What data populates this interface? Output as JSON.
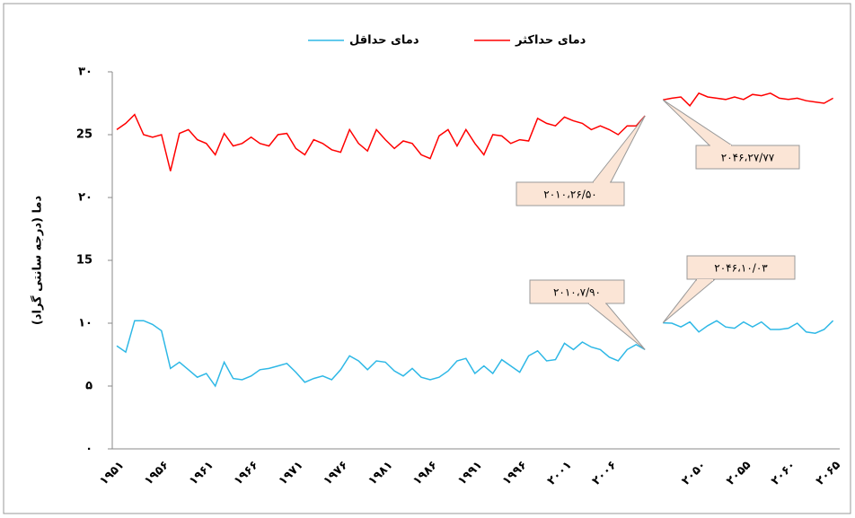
{
  "chart_data": {
    "type": "line",
    "y_label": "دما (درجه سانتی گراد)",
    "categories": [
      "۱۹۵۱",
      null,
      null,
      null,
      null,
      "۱۹۵۶",
      null,
      null,
      null,
      null,
      "۱۹۶۱",
      null,
      null,
      null,
      null,
      "۱۹۶۶",
      null,
      null,
      null,
      null,
      "۱۹۷۱",
      null,
      null,
      null,
      null,
      "۱۹۷۶",
      null,
      null,
      null,
      null,
      "۱۹۸۱",
      null,
      null,
      null,
      null,
      "۱۹۸۶",
      null,
      null,
      null,
      null,
      "۱۹۹۱",
      null,
      null,
      null,
      null,
      "۱۹۹۶",
      null,
      null,
      null,
      null,
      "۲۰۰۱",
      null,
      null,
      null,
      null,
      "۲۰۰۶",
      null,
      null,
      null,
      null,
      null,
      null,
      null,
      null,
      null,
      "۲۰۵۰",
      null,
      null,
      null,
      null,
      "۲۰۵۵",
      null,
      null,
      null,
      null,
      "۲۰۶۰",
      null,
      null,
      null,
      null,
      "۲۰۶۵"
    ],
    "series": [
      {
        "name": "دمای حداکثر",
        "color": "#ff0000",
        "values": [
          25.4,
          25.9,
          26.6,
          25.0,
          24.8,
          25.0,
          22.1,
          25.1,
          25.4,
          24.6,
          24.3,
          23.4,
          25.1,
          24.1,
          24.3,
          24.8,
          24.3,
          24.1,
          25.0,
          25.1,
          23.9,
          23.4,
          24.6,
          24.3,
          23.8,
          23.6,
          25.4,
          24.3,
          23.7,
          25.4,
          24.6,
          23.9,
          24.5,
          24.3,
          23.4,
          23.1,
          24.9,
          25.4,
          24.1,
          25.4,
          24.3,
          23.4,
          25.0,
          24.9,
          24.3,
          24.6,
          24.5,
          26.3,
          25.9,
          25.7,
          26.4,
          26.1,
          25.9,
          25.4,
          25.7,
          25.4,
          25.0,
          25.7,
          25.7,
          26.5,
          null,
          27.77,
          27.9,
          28.0,
          27.3,
          28.3,
          28.0,
          27.9,
          27.8,
          28.0,
          27.8,
          28.2,
          28.1,
          28.3,
          27.9,
          27.8,
          27.9,
          27.7,
          27.6,
          27.5,
          27.9
        ]
      },
      {
        "name": "دمای حداقل",
        "color": "#2eb8e6",
        "values": [
          8.2,
          7.7,
          10.2,
          10.2,
          9.9,
          9.4,
          6.4,
          6.9,
          6.3,
          5.7,
          6.0,
          5.0,
          6.9,
          5.6,
          5.5,
          5.8,
          6.3,
          6.4,
          6.6,
          6.8,
          6.1,
          5.3,
          5.6,
          5.8,
          5.5,
          6.3,
          7.4,
          7.0,
          6.3,
          7.0,
          6.9,
          6.2,
          5.8,
          6.4,
          5.7,
          5.5,
          5.7,
          6.2,
          7.0,
          7.2,
          6.0,
          6.6,
          6.0,
          7.1,
          6.6,
          6.1,
          7.4,
          7.8,
          7.0,
          7.1,
          8.4,
          7.9,
          8.5,
          8.1,
          7.9,
          7.3,
          7.0,
          7.9,
          8.3,
          7.9,
          null,
          10.03,
          10.0,
          9.7,
          10.1,
          9.3,
          9.8,
          10.2,
          9.7,
          9.6,
          10.1,
          9.7,
          10.1,
          9.5,
          9.5,
          9.6,
          10.0,
          9.3,
          9.2,
          9.5,
          10.2
        ]
      }
    ],
    "ylim": [
      0,
      30
    ],
    "yticks": [
      {
        "value": 0,
        "label": "۰"
      },
      {
        "value": 5,
        "label": "۵"
      },
      {
        "value": 10,
        "label": "۱۰"
      },
      15,
      {
        "value": 20,
        "label": "۲۰"
      },
      25,
      {
        "value": 30,
        "label": "۳۰"
      }
    ],
    "grid": false,
    "legend": "top",
    "annotations": [
      "۲۰۱۰،۲۶/۵۰",
      "۲۰۴۶،۲۷/۷۷",
      "۲۰۱۰،۷/۹۰",
      "۲۰۴۶،۱۰/۰۳"
    ]
  }
}
